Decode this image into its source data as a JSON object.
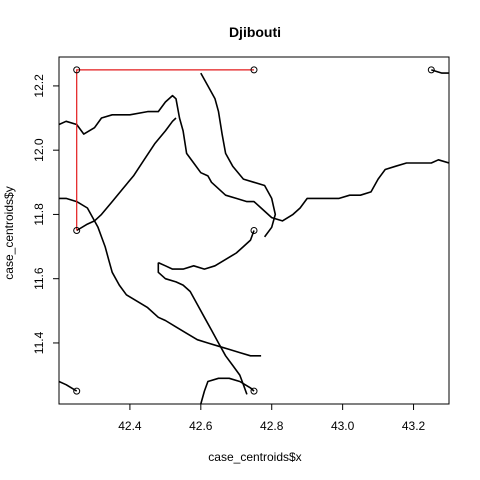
{
  "chart_data": {
    "type": "scatter",
    "title": "Djibouti",
    "xlabel": "case_centroids$x",
    "ylabel": "case_centroids$y",
    "xlim": [
      42.2,
      43.3
    ],
    "ylim": [
      11.21,
      12.29
    ],
    "x_ticks": [
      42.4,
      42.6,
      42.8,
      43.0,
      43.2
    ],
    "x_tick_labels": [
      "42.4",
      "42.6",
      "42.8",
      "43.0",
      "43.2"
    ],
    "y_ticks": [
      11.4,
      11.6,
      11.8,
      12.0,
      12.2
    ],
    "y_tick_labels": [
      "11.4",
      "11.6",
      "11.8",
      "12.0",
      "12.2"
    ],
    "points": [
      {
        "x": 42.25,
        "y": 12.25
      },
      {
        "x": 42.75,
        "y": 12.25
      },
      {
        "x": 43.25,
        "y": 12.25
      },
      {
        "x": 42.25,
        "y": 11.75
      },
      {
        "x": 42.75,
        "y": 11.75
      },
      {
        "x": 42.25,
        "y": 11.25
      },
      {
        "x": 42.75,
        "y": 11.25
      }
    ],
    "highlight_path": {
      "color": "#e31a1c",
      "coords": [
        [
          42.25,
          11.75
        ],
        [
          42.25,
          12.25
        ],
        [
          42.75,
          12.25
        ]
      ]
    },
    "boundary_color": "#000000",
    "boundaries": [
      [
        [
          42.2,
          12.08
        ],
        [
          42.22,
          12.09
        ],
        [
          42.25,
          12.08
        ],
        [
          42.27,
          12.05
        ],
        [
          42.3,
          12.07
        ],
        [
          42.32,
          12.1
        ],
        [
          42.35,
          12.11
        ],
        [
          42.4,
          12.11
        ],
        [
          42.45,
          12.12
        ],
        [
          42.48,
          12.12
        ],
        [
          42.5,
          12.15
        ],
        [
          42.52,
          12.17
        ],
        [
          42.53,
          12.16
        ],
        [
          42.54,
          12.1
        ],
        [
          42.55,
          12.06
        ],
        [
          42.56,
          11.99
        ],
        [
          42.58,
          11.96
        ],
        [
          42.6,
          11.93
        ],
        [
          42.62,
          11.92
        ],
        [
          42.63,
          11.9
        ],
        [
          42.65,
          11.88
        ],
        [
          42.67,
          11.86
        ],
        [
          42.7,
          11.85
        ],
        [
          42.73,
          11.84
        ],
        [
          42.75,
          11.84
        ],
        [
          42.77,
          11.82
        ],
        [
          42.8,
          11.79
        ],
        [
          42.83,
          11.78
        ],
        [
          42.86,
          11.8
        ],
        [
          42.88,
          11.82
        ],
        [
          42.9,
          11.85
        ],
        [
          42.93,
          11.85
        ],
        [
          42.96,
          11.85
        ],
        [
          42.99,
          11.85
        ],
        [
          43.02,
          11.86
        ],
        [
          43.05,
          11.86
        ],
        [
          43.08,
          11.87
        ],
        [
          43.1,
          11.91
        ],
        [
          43.12,
          11.94
        ],
        [
          43.15,
          11.95
        ],
        [
          43.18,
          11.96
        ],
        [
          43.21,
          11.96
        ],
        [
          43.25,
          11.96
        ],
        [
          43.27,
          11.97
        ],
        [
          43.3,
          11.96
        ]
      ],
      [
        [
          42.2,
          11.85
        ],
        [
          42.22,
          11.85
        ],
        [
          42.25,
          11.84
        ],
        [
          42.28,
          11.82
        ],
        [
          42.3,
          11.78
        ],
        [
          42.31,
          11.76
        ],
        [
          42.32,
          11.73
        ],
        [
          42.33,
          11.7
        ],
        [
          42.34,
          11.66
        ],
        [
          42.35,
          11.62
        ],
        [
          42.37,
          11.58
        ],
        [
          42.39,
          11.55
        ],
        [
          42.42,
          11.53
        ],
        [
          42.45,
          11.51
        ],
        [
          42.48,
          11.48
        ],
        [
          42.5,
          11.47
        ],
        [
          42.53,
          11.45
        ],
        [
          42.56,
          11.43
        ],
        [
          42.59,
          11.41
        ],
        [
          42.62,
          11.4
        ],
        [
          42.65,
          11.39
        ],
        [
          42.68,
          11.38
        ],
        [
          42.71,
          11.37
        ],
        [
          42.74,
          11.36
        ],
        [
          42.77,
          11.36
        ]
      ],
      [
        [
          42.48,
          11.65
        ],
        [
          42.5,
          11.64
        ],
        [
          42.52,
          11.63
        ],
        [
          42.55,
          11.63
        ],
        [
          42.58,
          11.64
        ],
        [
          42.61,
          11.63
        ],
        [
          42.64,
          11.64
        ],
        [
          42.67,
          11.66
        ],
        [
          42.7,
          11.68
        ],
        [
          42.72,
          11.7
        ],
        [
          42.74,
          11.72
        ],
        [
          42.75,
          11.75
        ]
      ],
      [
        [
          42.25,
          11.75
        ],
        [
          42.28,
          11.77
        ],
        [
          42.3,
          11.78
        ]
      ],
      [
        [
          42.73,
          11.24
        ],
        [
          42.72,
          11.27
        ],
        [
          42.71,
          11.3
        ],
        [
          42.69,
          11.33
        ],
        [
          42.67,
          11.36
        ],
        [
          42.65,
          11.4
        ],
        [
          42.63,
          11.44
        ],
        [
          42.61,
          11.48
        ],
        [
          42.59,
          11.52
        ],
        [
          42.57,
          11.56
        ],
        [
          42.55,
          11.58
        ],
        [
          42.53,
          11.59
        ],
        [
          42.5,
          11.6
        ],
        [
          42.48,
          11.62
        ],
        [
          42.48,
          11.65
        ]
      ],
      [
        [
          43.25,
          12.25
        ],
        [
          43.28,
          12.24
        ],
        [
          43.3,
          12.24
        ]
      ],
      [
        [
          42.6,
          12.24
        ],
        [
          42.62,
          12.2
        ],
        [
          42.64,
          12.16
        ],
        [
          42.65,
          12.12
        ],
        [
          42.66,
          12.05
        ],
        [
          42.67,
          11.99
        ],
        [
          42.69,
          11.95
        ],
        [
          42.72,
          11.91
        ],
        [
          42.75,
          11.9
        ],
        [
          42.78,
          11.89
        ],
        [
          42.8,
          11.85
        ],
        [
          42.81,
          11.8
        ],
        [
          42.8,
          11.76
        ],
        [
          42.78,
          11.73
        ]
      ],
      [
        [
          42.2,
          11.28
        ],
        [
          42.22,
          11.27
        ],
        [
          42.25,
          11.25
        ]
      ],
      [
        [
          42.6,
          11.21
        ],
        [
          42.61,
          11.25
        ],
        [
          42.62,
          11.28
        ],
        [
          42.65,
          11.29
        ],
        [
          42.68,
          11.29
        ],
        [
          42.71,
          11.28
        ],
        [
          42.74,
          11.26
        ],
        [
          42.75,
          11.25
        ]
      ],
      [
        [
          42.3,
          11.78
        ],
        [
          42.32,
          11.8
        ],
        [
          42.35,
          11.84
        ],
        [
          42.38,
          11.88
        ],
        [
          42.41,
          11.92
        ],
        [
          42.44,
          11.97
        ],
        [
          42.47,
          12.02
        ],
        [
          42.5,
          12.06
        ],
        [
          42.52,
          12.09
        ],
        [
          42.53,
          12.1
        ]
      ]
    ]
  }
}
